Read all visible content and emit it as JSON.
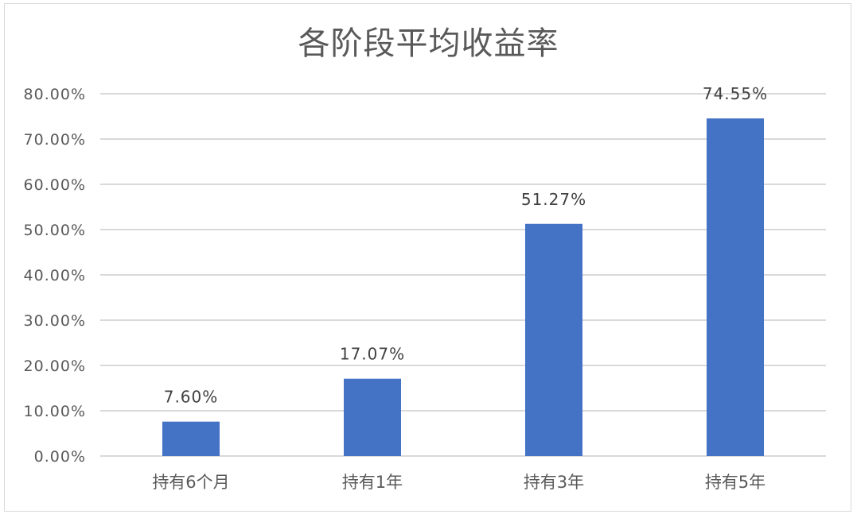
{
  "chart_data": {
    "type": "bar",
    "title": "各阶段平均收益率",
    "categories": [
      "持有6个月",
      "持有1年",
      "持有3年",
      "持有5年"
    ],
    "values": [
      7.6,
      17.07,
      51.27,
      74.55
    ],
    "value_labels": [
      "7.60%",
      "17.07%",
      "51.27%",
      "74.55%"
    ],
    "ylim": [
      0,
      80
    ],
    "yticks": [
      0,
      10,
      20,
      30,
      40,
      50,
      60,
      70,
      80
    ],
    "ytick_labels": [
      "0.00%",
      "10.00%",
      "20.00%",
      "30.00%",
      "40.00%",
      "50.00%",
      "60.00%",
      "70.00%",
      "80.00%"
    ],
    "xlabel": "",
    "ylabel": "",
    "grid": true,
    "legend": "none",
    "colors": {
      "bar": "#4472c4",
      "grid": "#d9d9d9",
      "text": "#595959"
    }
  }
}
